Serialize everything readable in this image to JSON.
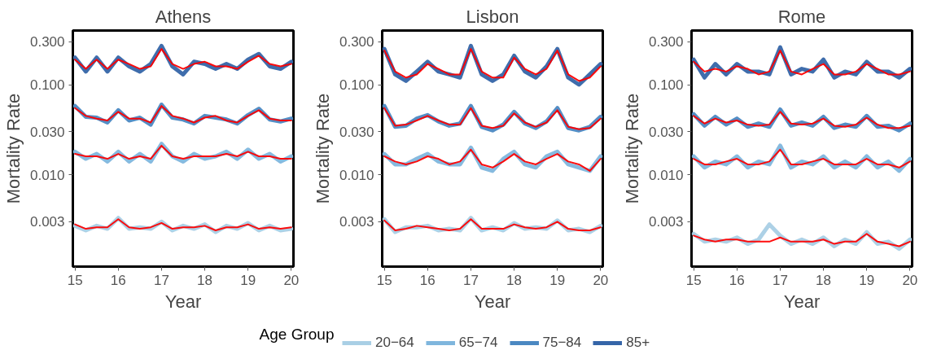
{
  "chart_data": [
    {
      "type": "line",
      "title": "Athens",
      "xlabel": "Year",
      "ylabel": "Mortality Rate",
      "log": true,
      "grid": false,
      "legend": "bottom",
      "legend_title": "Age Group",
      "x": [
        15,
        15.25,
        15.5,
        15.75,
        16,
        16.25,
        16.5,
        16.75,
        17,
        17.25,
        17.5,
        17.75,
        18,
        18.25,
        18.5,
        18.75,
        19,
        19.25,
        19.5,
        19.75,
        20
      ],
      "xlim": [
        14.95,
        20.05
      ],
      "xticks": [
        15,
        16,
        17,
        18,
        19,
        20
      ],
      "ylim": [
        0.00095,
        0.4
      ],
      "yticks": [
        {
          "value": 0.003,
          "label": "0.003"
        },
        {
          "value": 0.01,
          "label": "0.010"
        },
        {
          "value": 0.03,
          "label": "0.030"
        },
        {
          "value": 0.1,
          "label": "0.100"
        },
        {
          "value": 0.3,
          "label": "0.300"
        }
      ],
      "series": [
        {
          "name": "20−64",
          "color": "#a9cfe5",
          "values": [
            0.0027,
            0.0024,
            0.0027,
            0.0025,
            0.0033,
            0.0025,
            0.0026,
            0.0025,
            0.003,
            0.0024,
            0.0027,
            0.0025,
            0.0028,
            0.0023,
            0.0027,
            0.0025,
            0.0029,
            0.0024,
            0.0027,
            0.0024,
            0.0025
          ]
        },
        {
          "name": "65−74",
          "color": "#7fb6dd",
          "values": [
            0.018,
            0.015,
            0.017,
            0.014,
            0.018,
            0.014,
            0.017,
            0.014,
            0.022,
            0.016,
            0.014,
            0.017,
            0.015,
            0.016,
            0.018,
            0.015,
            0.019,
            0.015,
            0.017,
            0.014,
            0.016
          ]
        },
        {
          "name": "75−84",
          "color": "#4b88c2",
          "values": [
            0.058,
            0.044,
            0.043,
            0.038,
            0.052,
            0.04,
            0.043,
            0.036,
            0.06,
            0.043,
            0.041,
            0.037,
            0.045,
            0.043,
            0.041,
            0.037,
            0.046,
            0.054,
            0.041,
            0.039,
            0.042
          ]
        },
        {
          "name": "85+",
          "color": "#3565a8",
          "values": [
            0.2,
            0.14,
            0.2,
            0.14,
            0.2,
            0.16,
            0.14,
            0.17,
            0.27,
            0.16,
            0.13,
            0.18,
            0.17,
            0.15,
            0.17,
            0.15,
            0.19,
            0.22,
            0.16,
            0.15,
            0.18
          ]
        },
        {
          "color": "#ff0000",
          "values": [
            0.0028,
            0.0025,
            0.0026,
            0.0026,
            0.0032,
            0.0026,
            0.0025,
            0.0026,
            0.0029,
            0.0025,
            0.0026,
            0.0026,
            0.0027,
            0.0024,
            0.0026,
            0.0026,
            0.0028,
            0.0025,
            0.0026,
            0.0025,
            0.0026
          ]
        },
        {
          "color": "#ff0000",
          "values": [
            0.017,
            0.016,
            0.016,
            0.015,
            0.017,
            0.015,
            0.016,
            0.015,
            0.021,
            0.016,
            0.015,
            0.016,
            0.016,
            0.016,
            0.017,
            0.016,
            0.018,
            0.016,
            0.016,
            0.015,
            0.015
          ]
        },
        {
          "color": "#ff0000",
          "values": [
            0.055,
            0.045,
            0.042,
            0.04,
            0.05,
            0.042,
            0.042,
            0.038,
            0.058,
            0.045,
            0.042,
            0.038,
            0.043,
            0.045,
            0.04,
            0.038,
            0.045,
            0.052,
            0.042,
            0.04,
            0.04
          ]
        },
        {
          "color": "#ff0000",
          "values": [
            0.19,
            0.15,
            0.19,
            0.15,
            0.19,
            0.17,
            0.15,
            0.16,
            0.25,
            0.17,
            0.15,
            0.17,
            0.18,
            0.16,
            0.16,
            0.15,
            0.18,
            0.21,
            0.17,
            0.16,
            0.17
          ]
        }
      ]
    },
    {
      "type": "line",
      "title": "Lisbon",
      "xlabel": "Year",
      "ylabel": "Mortality Rate",
      "log": true,
      "grid": false,
      "x": [
        15,
        15.25,
        15.5,
        15.75,
        16,
        16.25,
        16.5,
        16.75,
        17,
        17.25,
        17.5,
        17.75,
        18,
        18.25,
        18.5,
        18.75,
        19,
        19.25,
        19.5,
        19.75,
        20
      ],
      "xlim": [
        14.95,
        20.05
      ],
      "xticks": [
        15,
        16,
        17,
        18,
        19,
        20
      ],
      "ylim": [
        0.00095,
        0.4
      ],
      "yticks": [
        {
          "value": 0.003,
          "label": "0.003"
        },
        {
          "value": 0.01,
          "label": "0.010"
        },
        {
          "value": 0.03,
          "label": "0.030"
        },
        {
          "value": 0.1,
          "label": "0.100"
        },
        {
          "value": 0.3,
          "label": "0.300"
        }
      ],
      "series": [
        {
          "color": "#a9cfe5",
          "values": [
            0.0032,
            0.0023,
            0.0026,
            0.0026,
            0.0027,
            0.0024,
            0.0025,
            0.0024,
            0.0033,
            0.0024,
            0.0026,
            0.0024,
            0.0029,
            0.0025,
            0.0026,
            0.0025,
            0.0031,
            0.0024,
            0.0025,
            0.0023,
            0.0027
          ]
        },
        {
          "color": "#7fb6dd",
          "values": [
            0.017,
            0.013,
            0.013,
            0.015,
            0.017,
            0.014,
            0.013,
            0.013,
            0.02,
            0.012,
            0.011,
            0.015,
            0.018,
            0.013,
            0.012,
            0.016,
            0.018,
            0.013,
            0.012,
            0.011,
            0.016
          ]
        },
        {
          "color": "#4b88c2",
          "values": [
            0.058,
            0.034,
            0.035,
            0.042,
            0.046,
            0.039,
            0.035,
            0.037,
            0.058,
            0.034,
            0.031,
            0.036,
            0.05,
            0.037,
            0.033,
            0.039,
            0.055,
            0.033,
            0.031,
            0.034,
            0.044
          ]
        },
        {
          "color": "#3565a8",
          "values": [
            0.25,
            0.13,
            0.11,
            0.14,
            0.18,
            0.14,
            0.13,
            0.12,
            0.27,
            0.13,
            0.11,
            0.13,
            0.21,
            0.14,
            0.12,
            0.16,
            0.25,
            0.12,
            0.1,
            0.13,
            0.17
          ]
        },
        {
          "color": "#ff0000",
          "values": [
            0.0031,
            0.0024,
            0.0025,
            0.0027,
            0.0026,
            0.0025,
            0.0024,
            0.0025,
            0.0032,
            0.0025,
            0.0025,
            0.0025,
            0.0028,
            0.0026,
            0.0025,
            0.0026,
            0.003,
            0.0025,
            0.0024,
            0.0024,
            0.0026
          ]
        },
        {
          "color": "#ff0000",
          "values": [
            0.016,
            0.014,
            0.013,
            0.014,
            0.016,
            0.015,
            0.013,
            0.014,
            0.019,
            0.013,
            0.012,
            0.014,
            0.017,
            0.014,
            0.013,
            0.015,
            0.017,
            0.014,
            0.013,
            0.011,
            0.015
          ]
        },
        {
          "color": "#ff0000",
          "values": [
            0.055,
            0.035,
            0.036,
            0.04,
            0.045,
            0.04,
            0.036,
            0.036,
            0.055,
            0.035,
            0.033,
            0.035,
            0.048,
            0.038,
            0.034,
            0.038,
            0.052,
            0.034,
            0.032,
            0.033,
            0.042
          ]
        },
        {
          "color": "#ff0000",
          "values": [
            0.24,
            0.14,
            0.12,
            0.13,
            0.17,
            0.15,
            0.13,
            0.13,
            0.25,
            0.14,
            0.12,
            0.12,
            0.2,
            0.15,
            0.13,
            0.15,
            0.24,
            0.13,
            0.11,
            0.12,
            0.16
          ]
        }
      ]
    },
    {
      "type": "line",
      "title": "Rome",
      "xlabel": "Year",
      "ylabel": "Mortality Rate",
      "log": true,
      "grid": false,
      "x": [
        15,
        15.25,
        15.5,
        15.75,
        16,
        16.25,
        16.5,
        16.75,
        17,
        17.25,
        17.5,
        17.75,
        18,
        18.25,
        18.5,
        18.75,
        19,
        19.25,
        19.5,
        19.75,
        20
      ],
      "xlim": [
        14.95,
        20.05
      ],
      "xticks": [
        15,
        16,
        17,
        18,
        19,
        20
      ],
      "ylim": [
        0.00095,
        0.4
      ],
      "yticks": [
        {
          "value": 0.003,
          "label": "0.003"
        },
        {
          "value": 0.01,
          "label": "0.010"
        },
        {
          "value": 0.03,
          "label": "0.030"
        },
        {
          "value": 0.1,
          "label": "0.100"
        },
        {
          "value": 0.3,
          "label": "0.300"
        }
      ],
      "series": [
        {
          "color": "#a9cfe5",
          "values": [
            0.0022,
            0.0018,
            0.0019,
            0.0018,
            0.002,
            0.0017,
            0.0019,
            0.0028,
            0.0021,
            0.0017,
            0.0019,
            0.0017,
            0.002,
            0.0016,
            0.0019,
            0.0017,
            0.0023,
            0.0017,
            0.0018,
            0.0015,
            0.0019
          ]
        },
        {
          "color": "#7fb6dd",
          "values": [
            0.016,
            0.012,
            0.014,
            0.013,
            0.016,
            0.012,
            0.014,
            0.013,
            0.021,
            0.012,
            0.014,
            0.013,
            0.016,
            0.012,
            0.014,
            0.012,
            0.016,
            0.012,
            0.014,
            0.011,
            0.015
          ]
        },
        {
          "color": "#4b88c2",
          "values": [
            0.047,
            0.035,
            0.044,
            0.036,
            0.042,
            0.034,
            0.037,
            0.034,
            0.053,
            0.035,
            0.038,
            0.035,
            0.044,
            0.033,
            0.036,
            0.034,
            0.045,
            0.034,
            0.035,
            0.031,
            0.037
          ]
        },
        {
          "color": "#3565a8",
          "values": [
            0.19,
            0.12,
            0.17,
            0.13,
            0.17,
            0.14,
            0.14,
            0.13,
            0.26,
            0.13,
            0.15,
            0.14,
            0.19,
            0.12,
            0.14,
            0.13,
            0.18,
            0.14,
            0.14,
            0.12,
            0.15
          ]
        },
        {
          "color": "#ff0000",
          "values": [
            0.0021,
            0.0019,
            0.0018,
            0.0019,
            0.0019,
            0.0018,
            0.0018,
            0.0018,
            0.002,
            0.0018,
            0.0018,
            0.0018,
            0.0019,
            0.0017,
            0.0018,
            0.0018,
            0.0022,
            0.0018,
            0.0017,
            0.0016,
            0.0018
          ]
        },
        {
          "color": "#ff0000",
          "values": [
            0.015,
            0.013,
            0.013,
            0.014,
            0.015,
            0.013,
            0.013,
            0.014,
            0.019,
            0.013,
            0.013,
            0.014,
            0.015,
            0.013,
            0.013,
            0.013,
            0.015,
            0.013,
            0.013,
            0.012,
            0.014
          ]
        },
        {
          "color": "#ff0000",
          "values": [
            0.045,
            0.037,
            0.042,
            0.038,
            0.04,
            0.036,
            0.035,
            0.036,
            0.05,
            0.037,
            0.036,
            0.037,
            0.042,
            0.035,
            0.034,
            0.036,
            0.043,
            0.036,
            0.033,
            0.033,
            0.035
          ]
        },
        {
          "color": "#ff0000",
          "values": [
            0.18,
            0.14,
            0.15,
            0.14,
            0.16,
            0.15,
            0.13,
            0.14,
            0.24,
            0.14,
            0.13,
            0.15,
            0.17,
            0.13,
            0.13,
            0.14,
            0.17,
            0.15,
            0.13,
            0.13,
            0.14
          ]
        }
      ]
    }
  ]
}
